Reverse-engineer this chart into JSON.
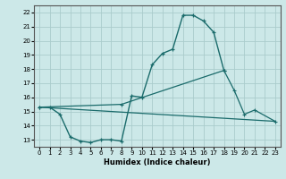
{
  "xlabel": "Humidex (Indice chaleur)",
  "bg_color": "#cce8e8",
  "grid_color": "#aacccc",
  "line_color": "#1a6b6b",
  "xlim": [
    -0.5,
    23.5
  ],
  "ylim": [
    12.5,
    22.5
  ],
  "xticks": [
    0,
    1,
    2,
    3,
    4,
    5,
    6,
    7,
    8,
    9,
    10,
    11,
    12,
    13,
    14,
    15,
    16,
    17,
    18,
    19,
    20,
    21,
    22,
    23
  ],
  "yticks": [
    13,
    14,
    15,
    16,
    17,
    18,
    19,
    20,
    21,
    22
  ],
  "line1_x": [
    0,
    1,
    2,
    3,
    4,
    5,
    6,
    7,
    8,
    9,
    10,
    11,
    12,
    13,
    14,
    15,
    16,
    17,
    18
  ],
  "line1_y": [
    15.3,
    15.3,
    14.8,
    13.2,
    12.9,
    12.8,
    13.0,
    13.0,
    12.9,
    16.1,
    16.0,
    18.3,
    19.1,
    19.4,
    21.8,
    21.8,
    21.4,
    20.6,
    17.9
  ],
  "line2_x": [
    0,
    8,
    18,
    19,
    20,
    21,
    23
  ],
  "line2_y": [
    15.3,
    15.5,
    17.9,
    16.5,
    14.8,
    15.1,
    14.3
  ],
  "line3_x": [
    0,
    23
  ],
  "line3_y": [
    15.3,
    14.3
  ],
  "xlabel_fontsize": 6,
  "tick_fontsize": 5
}
